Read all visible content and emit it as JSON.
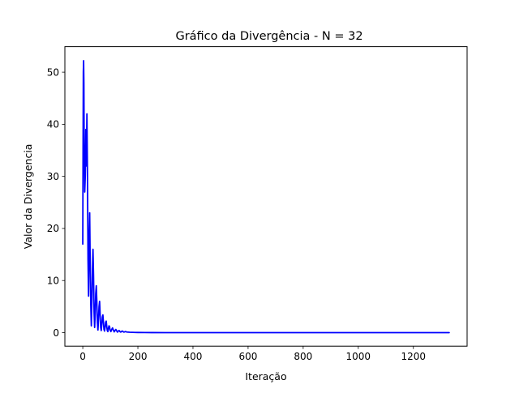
{
  "chart_data": {
    "type": "line",
    "title": "Gráfico da Divergência - N = 32",
    "xlabel": "Iteração",
    "ylabel": "Valor da Divergencia",
    "xlim": [
      -65,
      1395
    ],
    "ylim": [
      -2.6,
      54.9
    ],
    "xticks": [
      0,
      200,
      400,
      600,
      800,
      1000,
      1200
    ],
    "yticks": [
      0,
      10,
      20,
      30,
      40,
      50
    ],
    "grid": false,
    "legend": "none",
    "series": [
      {
        "color": "#0000ff",
        "x": [
          0,
          1,
          2,
          3,
          4,
          5,
          7,
          9,
          11,
          13,
          15,
          17,
          19,
          21,
          23,
          25,
          27,
          29,
          31,
          33,
          35,
          37,
          39,
          41,
          43,
          45,
          47,
          49,
          51,
          53,
          55,
          57,
          59,
          61,
          63,
          65,
          67,
          69,
          71,
          73,
          75,
          77,
          79,
          81,
          83,
          85,
          87,
          89,
          91,
          93,
          95,
          97,
          99,
          102,
          105,
          108,
          111,
          114,
          117,
          120,
          123,
          126,
          129,
          132,
          135,
          138,
          141,
          144,
          147,
          150,
          155,
          160,
          170,
          180,
          190,
          200,
          225,
          250,
          300,
          400,
          500,
          600,
          800,
          1000,
          1200,
          1330
        ],
        "y": [
          17.0,
          35.0,
          50.0,
          52.2,
          48.0,
          36.0,
          27.0,
          30.0,
          39.0,
          32.0,
          42.0,
          30.0,
          14.0,
          7.0,
          18.0,
          23.0,
          13.0,
          5.5,
          1.3,
          6.0,
          12.0,
          16.0,
          11.0,
          4.0,
          1.0,
          3.5,
          7.5,
          9.0,
          6.0,
          2.0,
          0.5,
          2.5,
          5.0,
          6.0,
          3.5,
          1.0,
          0.4,
          1.5,
          3.0,
          3.4,
          2.0,
          0.6,
          0.3,
          1.0,
          2.0,
          2.2,
          1.2,
          0.4,
          0.2,
          0.8,
          1.3,
          1.2,
          0.5,
          0.2,
          0.6,
          0.9,
          0.5,
          0.15,
          0.4,
          0.6,
          0.35,
          0.1,
          0.3,
          0.4,
          0.2,
          0.1,
          0.25,
          0.3,
          0.15,
          0.1,
          0.2,
          0.12,
          0.08,
          0.06,
          0.04,
          0.03,
          0.02,
          0.01,
          0.0,
          0.0,
          0.0,
          0.0,
          0.0,
          0.0,
          0.0,
          0.0
        ]
      }
    ]
  }
}
